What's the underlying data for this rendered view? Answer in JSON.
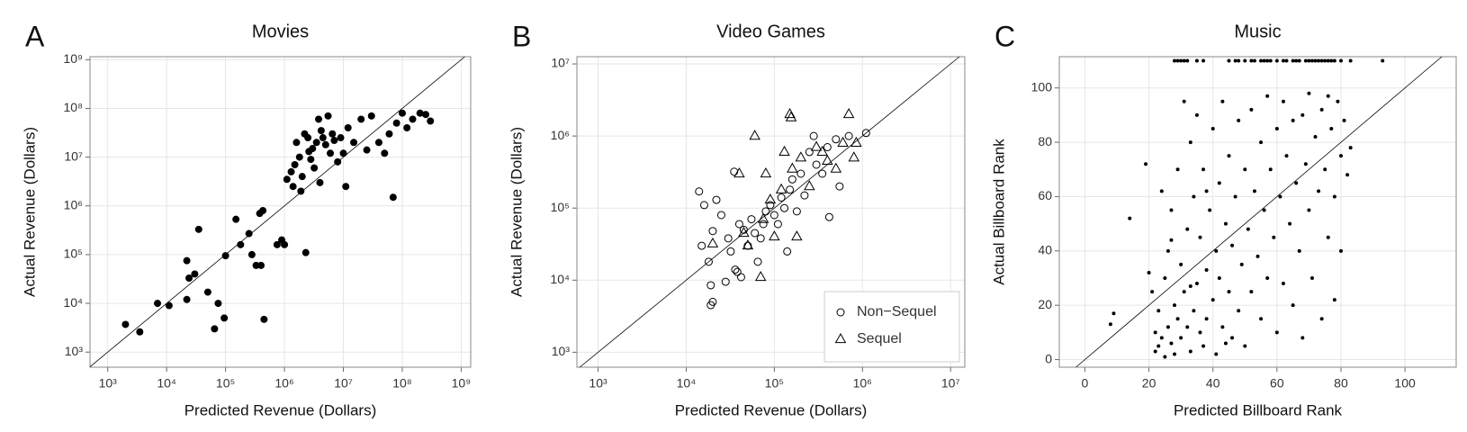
{
  "chart_data": [
    {
      "type": "scatter",
      "label": "A",
      "title": "Movies",
      "xlabel": "Predicted Revenue (Dollars)",
      "ylabel": "Actual Revenue (Dollars)",
      "xscale": "log",
      "yscale": "log",
      "grid": true,
      "diagonal": true,
      "xlim": [
        500,
        1450000000
      ],
      "ylim": [
        490,
        1150000000
      ],
      "xticks": [
        {
          "value": 1000,
          "label": "10³"
        },
        {
          "value": 10000,
          "label": "10⁴"
        },
        {
          "value": 100000,
          "label": "10⁵"
        },
        {
          "value": 1000000,
          "label": "10⁶"
        },
        {
          "value": 10000000,
          "label": "10⁷"
        },
        {
          "value": 100000000,
          "label": "10⁸"
        },
        {
          "value": 1000000000,
          "label": "10⁹"
        }
      ],
      "yticks": [
        {
          "value": 1000,
          "label": "10³"
        },
        {
          "value": 10000,
          "label": "10⁴"
        },
        {
          "value": 100000,
          "label": "10⁵"
        },
        {
          "value": 1000000,
          "label": "10⁶"
        },
        {
          "value": 10000000,
          "label": "10⁷"
        },
        {
          "value": 100000000,
          "label": "10⁸"
        },
        {
          "value": 1000000000,
          "label": "10⁹"
        }
      ],
      "series": [
        {
          "marker": "filled-circle",
          "color": "#000000",
          "x": [
            2000,
            3500,
            7000,
            11000,
            22000,
            22000,
            24000,
            30000,
            35000,
            50000,
            65000,
            75000,
            95000,
            100000,
            150000,
            180000,
            250000,
            280000,
            330000,
            400000,
            380000,
            450000,
            430000,
            750000,
            900000,
            1000000,
            2300000,
            1100000,
            1300000,
            1400000,
            1500000,
            1600000,
            1800000,
            2000000,
            2200000,
            2500000,
            2800000,
            3000000,
            3500000,
            3800000,
            4000000,
            4500000,
            5000000,
            5500000,
            6000000,
            6500000,
            7000000,
            8000000,
            9000000,
            10000000,
            11000000,
            12000000,
            15000000,
            20000000,
            25000000,
            30000000,
            40000000,
            50000000,
            60000000,
            70000000,
            80000000,
            100000000,
            120000000,
            150000000,
            200000000,
            250000000,
            300000000,
            2600000,
            3200000,
            1900000,
            4200000
          ],
          "y": [
            3700,
            2600,
            10000,
            9000,
            12000,
            75000,
            33000,
            40000,
            330000,
            17000,
            3000,
            10000,
            5000,
            95000,
            530000,
            160000,
            270000,
            100000,
            60000,
            60000,
            700000,
            4700,
            800000,
            160000,
            200000,
            160000,
            110000,
            3500000,
            5000000,
            2500000,
            7000000,
            20000000,
            10000000,
            4000000,
            30000000,
            25000000,
            9000000,
            15000000,
            20000000,
            60000000,
            3000000,
            25000000,
            18000000,
            70000000,
            12000000,
            30000000,
            22000000,
            8000000,
            25000000,
            12000000,
            2500000,
            40000000,
            20000000,
            60000000,
            14000000,
            70000000,
            20000000,
            12000000,
            30000000,
            1500000,
            50000000,
            80000000,
            40000000,
            60000000,
            80000000,
            75000000,
            55000000,
            13000000,
            6000000,
            2000000,
            35000000
          ]
        }
      ]
    },
    {
      "type": "scatter",
      "label": "B",
      "title": "Video Games",
      "xlabel": "Predicted Revenue (Dollars)",
      "ylabel": "Actual Revenue (Dollars)",
      "xscale": "log",
      "yscale": "log",
      "grid": true,
      "diagonal": true,
      "legend": "bottom-right",
      "xlim": [
        575,
        14500000
      ],
      "ylim": [
        620,
        12600000
      ],
      "xticks": [
        {
          "value": 1000,
          "label": "10³"
        },
        {
          "value": 10000,
          "label": "10⁴"
        },
        {
          "value": 100000,
          "label": "10⁵"
        },
        {
          "value": 1000000,
          "label": "10⁶"
        },
        {
          "value": 10000000,
          "label": "10⁷"
        }
      ],
      "yticks": [
        {
          "value": 1000,
          "label": "10³"
        },
        {
          "value": 10000,
          "label": "10⁴"
        },
        {
          "value": 100000,
          "label": "10⁵"
        },
        {
          "value": 1000000,
          "label": "10⁶"
        },
        {
          "value": 10000000,
          "label": "10⁷"
        }
      ],
      "series": [
        {
          "name": "Non−Sequel",
          "marker": "open-circle",
          "color": "#000000",
          "x": [
            14000,
            15000,
            16000,
            18000,
            19000,
            19000,
            20000,
            20000,
            22000,
            25000,
            28000,
            30000,
            32000,
            35000,
            36000,
            38000,
            40000,
            42000,
            45000,
            50000,
            55000,
            60000,
            65000,
            70000,
            75000,
            80000,
            90000,
            100000,
            110000,
            120000,
            130000,
            140000,
            150000,
            160000,
            180000,
            200000,
            220000,
            250000,
            280000,
            300000,
            350000,
            400000,
            420000,
            500000,
            550000,
            700000,
            1100000
          ],
          "y": [
            170000,
            30000,
            110000,
            18000,
            8500,
            4500,
            5000,
            48000,
            130000,
            80000,
            9500,
            38000,
            25000,
            320000,
            14000,
            13000,
            60000,
            11000,
            50000,
            30000,
            70000,
            45000,
            18000,
            38000,
            60000,
            90000,
            110000,
            80000,
            60000,
            140000,
            100000,
            25000,
            180000,
            250000,
            90000,
            300000,
            150000,
            600000,
            1000000,
            400000,
            300000,
            700000,
            75000,
            900000,
            200000,
            1000000,
            1100000
          ]
        },
        {
          "name": "Sequel",
          "marker": "open-triangle",
          "color": "#000000",
          "x": [
            20000,
            40000,
            45000,
            50000,
            60000,
            70000,
            75000,
            80000,
            90000,
            100000,
            120000,
            130000,
            150000,
            155000,
            160000,
            180000,
            200000,
            250000,
            300000,
            350000,
            400000,
            500000,
            600000,
            700000,
            800000,
            850000
          ],
          "y": [
            32000,
            300000,
            45000,
            30000,
            1000000,
            11000,
            70000,
            300000,
            130000,
            40000,
            180000,
            600000,
            2000000,
            1800000,
            350000,
            40000,
            500000,
            200000,
            700000,
            600000,
            450000,
            350000,
            800000,
            2000000,
            500000,
            800000
          ]
        }
      ]
    },
    {
      "type": "scatter",
      "label": "C",
      "title": "Music",
      "xlabel": "Predicted Billboard Rank",
      "ylabel": "Actual Billboard Rank",
      "xscale": "linear",
      "yscale": "linear",
      "grid": true,
      "diagonal": true,
      "xlim": [
        -8,
        116
      ],
      "ylim": [
        -2.8,
        111.5
      ],
      "xticks": [
        0,
        20,
        40,
        60,
        80,
        100
      ],
      "yticks": [
        0,
        20,
        40,
        60,
        80,
        100
      ],
      "series": [
        {
          "marker": "small-dot",
          "color": "#000000",
          "x": [
            28,
            29,
            30,
            31,
            32,
            35,
            37,
            45,
            47,
            48,
            50,
            52,
            53,
            55,
            56,
            57,
            58,
            60,
            62,
            63,
            65,
            66,
            67,
            69,
            70,
            71,
            72,
            73,
            74,
            75,
            76,
            77,
            78,
            80,
            83,
            93,
            8,
            9,
            14,
            19,
            21,
            22,
            22,
            23,
            23,
            24,
            24,
            25,
            25,
            26,
            26,
            27,
            27,
            28,
            28,
            29,
            29,
            30,
            30,
            31,
            31,
            32,
            32,
            33,
            33,
            34,
            34,
            35,
            35,
            36,
            36,
            37,
            37,
            38,
            38,
            39,
            40,
            40,
            41,
            41,
            42,
            42,
            43,
            43,
            44,
            45,
            45,
            46,
            46,
            47,
            48,
            48,
            49,
            50,
            50,
            51,
            52,
            52,
            53,
            54,
            55,
            55,
            56,
            57,
            57,
            58,
            59,
            60,
            60,
            61,
            62,
            62,
            63,
            64,
            65,
            65,
            66,
            67,
            68,
            68,
            69,
            70,
            70,
            71,
            72,
            73,
            74,
            74,
            75,
            76,
            76,
            77,
            78,
            78,
            79,
            80,
            80,
            81,
            82,
            83,
            20,
            27,
            33,
            38,
            44
          ],
          "y": [
            110,
            110,
            110,
            110,
            110,
            110,
            110,
            110,
            110,
            110,
            110,
            110,
            110,
            110,
            110,
            110,
            110,
            110,
            110,
            110,
            110,
            110,
            110,
            110,
            110,
            110,
            110,
            110,
            110,
            110,
            110,
            110,
            110,
            110,
            110,
            110,
            13,
            17,
            52,
            72,
            25,
            10,
            3,
            5,
            18,
            62,
            8,
            30,
            1,
            12,
            40,
            55,
            6,
            20,
            2,
            70,
            15,
            35,
            8,
            95,
            25,
            12,
            48,
            80,
            3,
            18,
            60,
            28,
            90,
            10,
            45,
            5,
            70,
            33,
            15,
            55,
            85,
            22,
            40,
            2,
            65,
            30,
            12,
            95,
            50,
            25,
            75,
            8,
            42,
            60,
            18,
            88,
            35,
            70,
            5,
            48,
            25,
            92,
            62,
            38,
            15,
            80,
            55,
            30,
            97,
            70,
            45,
            85,
            10,
            60,
            28,
            95,
            75,
            50,
            88,
            20,
            65,
            40,
            90,
            8,
            72,
            55,
            98,
            30,
            82,
            62,
            92,
            15,
            70,
            45,
            97,
            85,
            60,
            22,
            95,
            75,
            40,
            88,
            68,
            78,
            32,
            44,
            27,
            62,
            6
          ]
        }
      ]
    }
  ]
}
